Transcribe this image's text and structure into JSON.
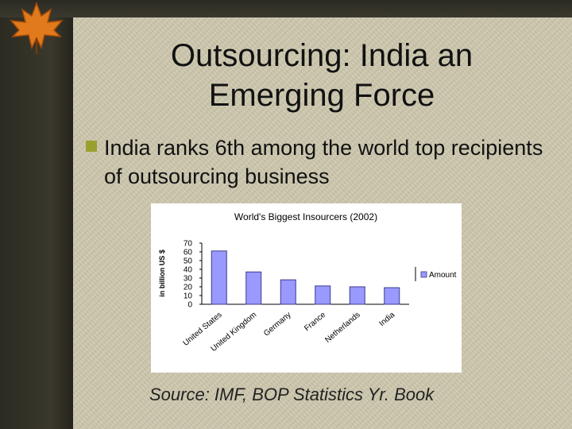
{
  "slide": {
    "title_line1": "Outsourcing: India an",
    "title_line2": "Emerging Force",
    "bullet": "India ranks 6th among the world top recipients of outsourcing business",
    "source": "Source: IMF, BOP Statistics Yr. Book"
  },
  "colors": {
    "bar_fill": "#9999ff",
    "bar_stroke": "#3c3c8c",
    "bullet": "#9aa02f"
  },
  "chart_data": {
    "type": "bar",
    "title": "World's Biggest Insourcers (2002)",
    "ylabel": "in billion US $",
    "xlabel": "",
    "categories": [
      "United States",
      "United Kingdom",
      "Germany",
      "France",
      "Netherlands",
      "India"
    ],
    "series": [
      {
        "name": "Amount",
        "values": [
          61,
          37,
          28,
          21,
          20,
          19
        ]
      }
    ],
    "ylim": [
      0,
      70
    ],
    "yticks": [
      0,
      10,
      20,
      30,
      40,
      50,
      60,
      70
    ],
    "legend": "right",
    "grid": false
  }
}
